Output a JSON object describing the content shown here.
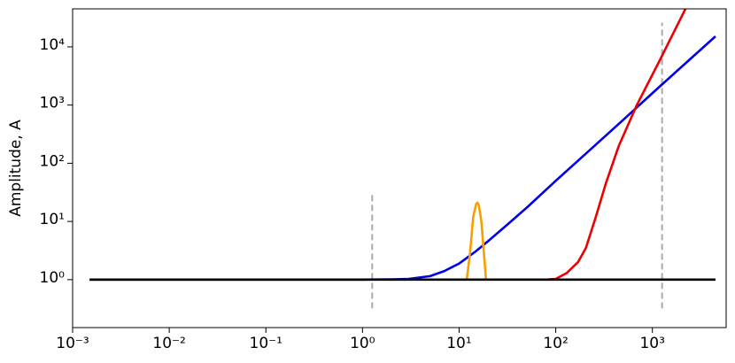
{
  "chart_data": {
    "type": "line",
    "ylabel": "Amplitude, A",
    "xscale": "log",
    "yscale": "log",
    "xlim": [
      0.001,
      5800
    ],
    "ylim": [
      0.15,
      45000
    ],
    "xticks": [
      {
        "value": 0.001,
        "label": "10⁻³"
      },
      {
        "value": 0.01,
        "label": "10⁻²"
      },
      {
        "value": 0.1,
        "label": "10⁻¹"
      },
      {
        "value": 1,
        "label": "10⁰"
      },
      {
        "value": 10,
        "label": "10¹"
      },
      {
        "value": 100,
        "label": "10²"
      },
      {
        "value": 1000,
        "label": "10³"
      }
    ],
    "yticks": [
      {
        "value": 1,
        "label": "10⁰"
      },
      {
        "value": 10,
        "label": "10¹"
      },
      {
        "value": 100,
        "label": "10²"
      },
      {
        "value": 1000,
        "label": "10³"
      },
      {
        "value": 10000,
        "label": "10⁴"
      }
    ],
    "series": [
      {
        "color": "#0000ee",
        "x": [
          0.0015,
          0.5,
          1,
          2,
          3,
          5,
          7,
          10,
          15,
          20,
          30,
          50,
          100,
          200,
          500,
          1000,
          2000,
          4500
        ],
        "values": [
          1,
          1,
          1,
          1.01,
          1.03,
          1.15,
          1.4,
          1.89,
          3.1,
          4.6,
          8.2,
          17.2,
          50,
          141,
          558,
          1600,
          4520,
          15200
        ]
      },
      {
        "color": "#ee0000",
        "x": [
          80,
          100,
          130,
          170,
          205,
          260,
          330,
          450,
          690,
          1200,
          2200
        ],
        "values": [
          1,
          1.03,
          1.3,
          2,
          3.5,
          12,
          45,
          200,
          1000,
          6000,
          45000
        ]
      },
      {
        "color": "#f5a000",
        "x": [
          12,
          13,
          14,
          15,
          15.5,
          16,
          17,
          18,
          19
        ],
        "values": [
          1,
          3,
          12,
          20,
          21,
          19,
          10,
          3,
          1
        ]
      },
      {
        "color": "#000000",
        "x": [
          0.0015,
          4500
        ],
        "values": [
          1,
          1
        ]
      }
    ],
    "vlines": [
      {
        "color": "#aaaaaa",
        "x": 1.26,
        "y": [
          0.32,
          30
        ]
      },
      {
        "color": "#aaaaaa",
        "x": 1260,
        "y": [
          0.32,
          26000
        ]
      }
    ]
  }
}
